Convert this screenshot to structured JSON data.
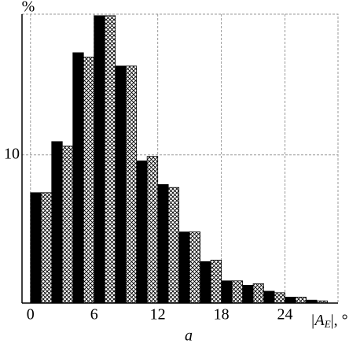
{
  "chart_data": {
    "type": "histogram",
    "ylabel": "%",
    "xlabel": [
      "|A",
      "E",
      "|, °"
    ],
    "caption": "a",
    "bins": [
      0,
      2,
      4,
      6,
      8,
      10,
      12,
      14,
      16,
      18,
      20,
      22,
      24,
      26,
      28
    ],
    "series": [
      {
        "color": "#000000",
        "pattern": "solid",
        "values": [
          7.45,
          10.9,
          16.9,
          19.4,
          16.0,
          9.6,
          8.0,
          4.8,
          2.8,
          1.5,
          1.2,
          0.8,
          0.4,
          0.2
        ]
      },
      {
        "color": "#000000",
        "pattern": "crosshatch",
        "values": [
          7.45,
          10.6,
          16.6,
          19.4,
          16.0,
          9.9,
          7.8,
          4.8,
          2.9,
          1.5,
          1.3,
          0.7,
          0.4,
          0.15
        ]
      }
    ],
    "xlim": [
      -0.8,
      29
    ],
    "ylim": [
      0,
      19.5
    ],
    "xticks": [
      0,
      6,
      12,
      18,
      24
    ],
    "yticks": [
      10
    ],
    "grid": true
  }
}
